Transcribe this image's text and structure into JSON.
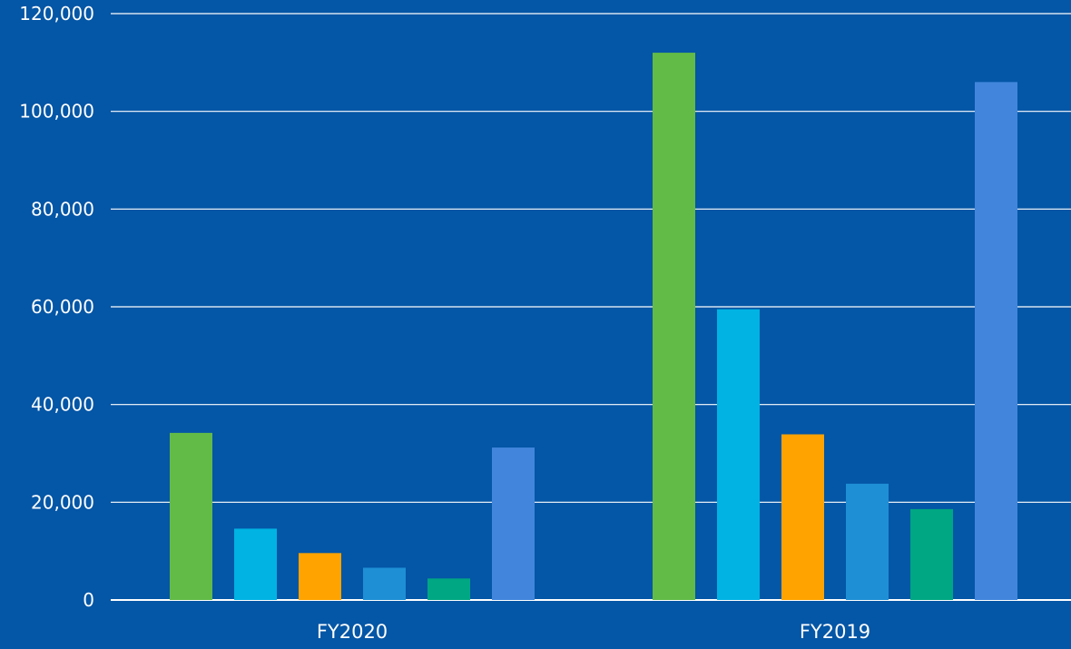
{
  "chart_data": {
    "type": "bar",
    "title": "",
    "xlabel": "",
    "ylabel": "",
    "categories": [
      "FY2020",
      "FY2019"
    ],
    "series": [
      {
        "color": "#62bb46",
        "values": [
          34200,
          112000
        ]
      },
      {
        "color": "#00b3e3",
        "values": [
          14600,
          59500
        ]
      },
      {
        "color": "#ffa300",
        "values": [
          9600,
          33900
        ]
      },
      {
        "color": "#1e8fd5",
        "values": [
          6600,
          23800
        ]
      },
      {
        "color": "#00a783",
        "values": [
          4400,
          18600
        ]
      },
      {
        "color": "#4186dc",
        "values": [
          31200,
          106000
        ]
      }
    ],
    "ylim": [
      0,
      120000
    ],
    "yticks": [
      0,
      20000,
      40000,
      60000,
      80000,
      100000,
      120000
    ],
    "ytick_labels": [
      "0",
      "20,000",
      "40,000",
      "60,000",
      "80,000",
      "100,000",
      "120,000"
    ],
    "grid": true,
    "legend": "none"
  },
  "colors": {
    "background": "#0456a6",
    "gridline": "#ffffff",
    "text": "#ffffff"
  }
}
